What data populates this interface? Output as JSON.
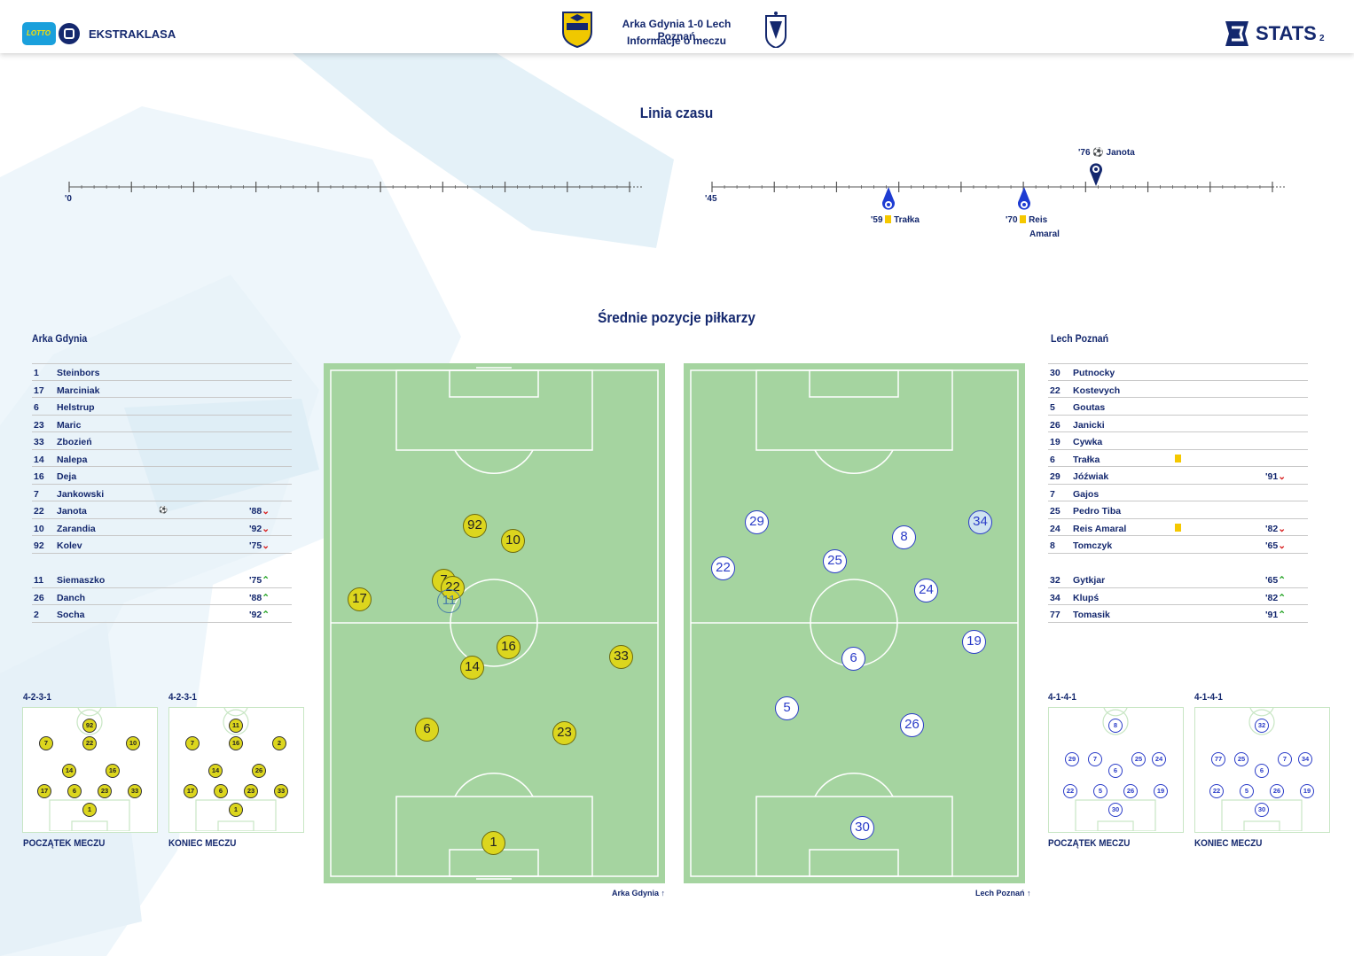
{
  "header": {
    "league": "EKSTRAKLASA",
    "lotto": "LOTTO",
    "match_title": "Arka Gdynia 1-0  Lech Poznań",
    "subtitle": "Informacje o meczu",
    "stats_brand": "STATS",
    "page_number": "2"
  },
  "timeline": {
    "title": "Linia czasu",
    "first_half_start": "'0",
    "second_half_start": "'45",
    "events": [
      {
        "minute": "'76",
        "player": "Janota",
        "type": "goal",
        "side": "above"
      },
      {
        "minute": "'59",
        "player": "Trałka",
        "type": "yellow-card",
        "side": "below"
      },
      {
        "minute": "'70",
        "player": "Reis Amaral",
        "type": "yellow-card",
        "side": "below"
      }
    ],
    "event_line1": {
      "e0": "'76",
      "e0p": "Janota",
      "e1": "'59",
      "e1p": "Trałka",
      "e2": "'70",
      "e2p": "Reis",
      "e2p2": "Amaral"
    }
  },
  "positions_title": "Średnie pozycje piłkarzy",
  "arka": {
    "name": "Arka Gdynia",
    "color": "#dcd61e",
    "starters": [
      {
        "num": "1",
        "name": "Steinbors"
      },
      {
        "num": "17",
        "name": "Marciniak"
      },
      {
        "num": "6",
        "name": "Helstrup"
      },
      {
        "num": "23",
        "name": "Maric"
      },
      {
        "num": "33",
        "name": "Zbozień"
      },
      {
        "num": "14",
        "name": "Nalepa"
      },
      {
        "num": "16",
        "name": "Deja"
      },
      {
        "num": "7",
        "name": "Jankowski"
      },
      {
        "num": "22",
        "name": "Janota",
        "goal": true,
        "sub": "'88"
      },
      {
        "num": "10",
        "name": "Zarandia",
        "sub": "'92"
      },
      {
        "num": "92",
        "name": "Kolev",
        "sub": "'75"
      }
    ],
    "subs": [
      {
        "num": "11",
        "name": "Siemaszko",
        "in": "'75"
      },
      {
        "num": "26",
        "name": "Danch",
        "in": "'88"
      },
      {
        "num": "2",
        "name": "Socha",
        "in": "'92"
      }
    ],
    "pitch_label": "Arka Gdynia",
    "formation_start": "4-2-3-1",
    "formation_end": "4-2-3-1",
    "start_label": "POCZĄTEK MECZU",
    "end_label": "KONIEC MECZU",
    "avg_positions": [
      "92",
      "10",
      "7",
      "22",
      "11",
      "17",
      "16",
      "14",
      "33",
      "6",
      "23",
      "1"
    ],
    "mini_start": [
      "92",
      "7",
      "22",
      "10",
      "14",
      "16",
      "17",
      "6",
      "23",
      "33",
      "1"
    ],
    "mini_end": [
      "11",
      "7",
      "16",
      "2",
      "14",
      "26",
      "17",
      "6",
      "23",
      "33",
      "1"
    ]
  },
  "lech": {
    "name": "Lech Poznań",
    "color": "#2a3cc8",
    "starters": [
      {
        "num": "30",
        "name": "Putnocky"
      },
      {
        "num": "22",
        "name": "Kostevych"
      },
      {
        "num": "5",
        "name": "Goutas"
      },
      {
        "num": "26",
        "name": "Janicki"
      },
      {
        "num": "19",
        "name": "Cywka"
      },
      {
        "num": "6",
        "name": "Trałka",
        "yellow": true
      },
      {
        "num": "29",
        "name": "Jóźwiak",
        "sub": "'91"
      },
      {
        "num": "7",
        "name": "Gajos"
      },
      {
        "num": "25",
        "name": "Pedro Tiba"
      },
      {
        "num": "24",
        "name": "Reis Amaral",
        "yellow": true,
        "sub": "'82"
      },
      {
        "num": "8",
        "name": "Tomczyk",
        "sub": "'65"
      }
    ],
    "subs": [
      {
        "num": "32",
        "name": "Gytkjar",
        "in": "'65"
      },
      {
        "num": "34",
        "name": "Klupś",
        "in": "'82"
      },
      {
        "num": "77",
        "name": "Tomasik",
        "in": "'91"
      }
    ],
    "pitch_label": "Lech Poznań",
    "formation_start": "4-1-4-1",
    "formation_end": "4-1-4-1",
    "start_label": "POCZĄTEK MECZU",
    "end_label": "KONIEC MECZU",
    "avg_positions": [
      "29",
      "34",
      "8",
      "25",
      "22",
      "24",
      "19",
      "6",
      "5",
      "26",
      "30"
    ],
    "mini_start": [
      "8",
      "29",
      "7",
      "25",
      "24",
      "6",
      "22",
      "5",
      "26",
      "19",
      "30"
    ],
    "mini_end": [
      "32",
      "77",
      "25",
      "7",
      "34",
      "6",
      "22",
      "5",
      "26",
      "19",
      "30"
    ]
  }
}
